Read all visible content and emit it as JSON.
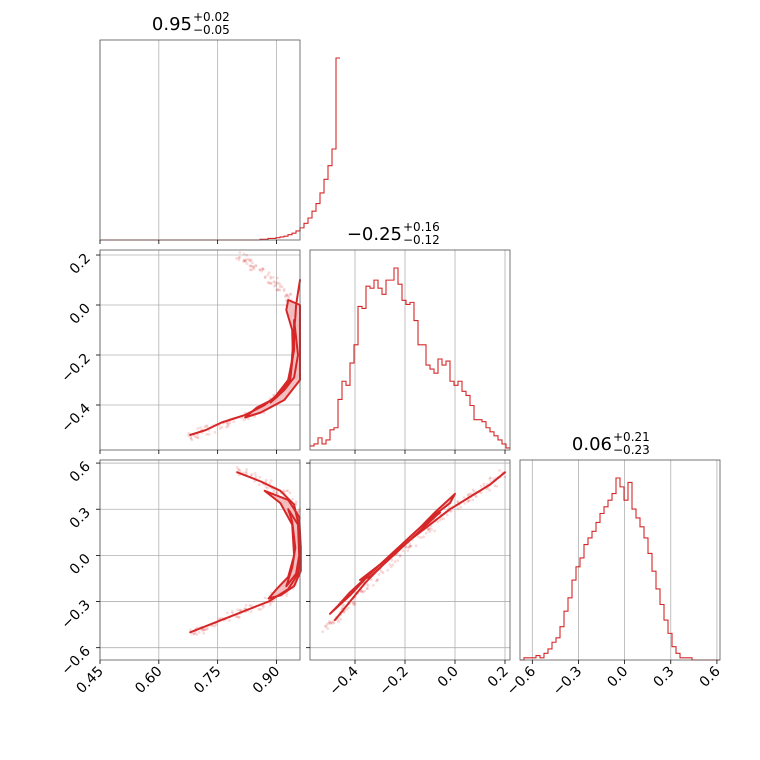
{
  "chart_data": {
    "type": "corner",
    "color": "#d62728",
    "parameters": [
      {
        "median": "0.95",
        "plus": "+0.02",
        "minus": "−0.05",
        "range": [
          0.45,
          0.96
        ],
        "ticks": [
          0.45,
          0.6,
          0.75,
          0.9
        ],
        "tick_labels": [
          "0.45",
          "0.60",
          "0.75",
          "0.90"
        ]
      },
      {
        "median": "−0.25",
        "plus": "+0.16",
        "minus": "−0.12",
        "range": [
          -0.58,
          0.22
        ],
        "ticks": [
          -0.4,
          -0.2,
          0.0,
          0.2
        ],
        "tick_labels": [
          "−0.4",
          "−0.2",
          "0.0",
          "0.2"
        ]
      },
      {
        "median": "0.06",
        "plus": "+0.21",
        "minus": "−0.23",
        "range": [
          -0.68,
          0.62
        ],
        "ticks": [
          -0.6,
          -0.3,
          0.0,
          0.3,
          0.6
        ],
        "tick_labels": [
          "−0.6",
          "−0.3",
          "0.0",
          "0.3",
          "0.6"
        ]
      }
    ],
    "histograms": [
      {
        "param": 0,
        "edges_start": 0.45,
        "bin_width": 0.0102,
        "counts": [
          0,
          0,
          0,
          0,
          0,
          0,
          0,
          0,
          0,
          0,
          0,
          0,
          0,
          0,
          0,
          0,
          0,
          0,
          0,
          0,
          0,
          0,
          0,
          0,
          0,
          0,
          0,
          0,
          0,
          0,
          0,
          0,
          0,
          0,
          0,
          0,
          0,
          0,
          0,
          0,
          1,
          1,
          2,
          2,
          3,
          4,
          5,
          7,
          9,
          12,
          16,
          22,
          29,
          38,
          48,
          62,
          80,
          98,
          120,
          240
        ]
      },
      {
        "param": 1,
        "edges_start": -0.58,
        "bin_width": 0.016,
        "counts": [
          2,
          3,
          6,
          3,
          5,
          10,
          11,
          25,
          34,
          32,
          43,
          52,
          71,
          70,
          81,
          80,
          84,
          80,
          77,
          84,
          84,
          90,
          82,
          74,
          72,
          73,
          64,
          52,
          52,
          42,
          40,
          38,
          45,
          42,
          44,
          34,
          32,
          34,
          29,
          27,
          22,
          15,
          15,
          14,
          11,
          9,
          7,
          5,
          3,
          1
        ]
      },
      {
        "param": 2,
        "edges_start": -0.68,
        "bin_width": 0.026,
        "counts": [
          0,
          1,
          1,
          1,
          2,
          1,
          3,
          5,
          8,
          10,
          15,
          22,
          28,
          36,
          42,
          46,
          52,
          55,
          58,
          62,
          66,
          69,
          72,
          75,
          82,
          78,
          72,
          80,
          68,
          64,
          60,
          55,
          48,
          40,
          32,
          25,
          18,
          12,
          6,
          3,
          1,
          1,
          1,
          0,
          0,
          0,
          0,
          0,
          0,
          0
        ]
      }
    ],
    "pairs": [
      {
        "x": 0,
        "y": 1,
        "ridge": [
          [
            0.96,
            0.1
          ],
          [
            0.955,
            0.05
          ],
          [
            0.95,
            0.0
          ],
          [
            0.948,
            -0.05
          ],
          [
            0.945,
            -0.1
          ],
          [
            0.943,
            -0.15
          ],
          [
            0.94,
            -0.2
          ],
          [
            0.938,
            -0.25
          ],
          [
            0.93,
            -0.3
          ],
          [
            0.91,
            -0.35
          ],
          [
            0.87,
            -0.4
          ],
          [
            0.82,
            -0.44
          ],
          [
            0.76,
            -0.47
          ],
          [
            0.72,
            -0.5
          ],
          [
            0.68,
            -0.52
          ]
        ],
        "scatter_band": [
          [
            0.8,
            0.2
          ],
          [
            0.84,
            0.16
          ],
          [
            0.89,
            0.1
          ],
          [
            0.93,
            0.04
          ],
          [
            0.95,
            -0.05
          ],
          [
            0.955,
            -0.15
          ],
          [
            0.955,
            -0.25
          ],
          [
            0.93,
            -0.33
          ],
          [
            0.88,
            -0.4
          ],
          [
            0.8,
            -0.46
          ],
          [
            0.72,
            -0.5
          ],
          [
            0.68,
            -0.53
          ]
        ],
        "contour_outer": [
          [
            0.93,
            0.02
          ],
          [
            0.96,
            0.0
          ],
          [
            0.96,
            -0.3
          ],
          [
            0.92,
            -0.38
          ],
          [
            0.86,
            -0.43
          ],
          [
            0.82,
            -0.45
          ],
          [
            0.85,
            -0.41
          ],
          [
            0.9,
            -0.37
          ],
          [
            0.935,
            -0.3
          ],
          [
            0.942,
            -0.2
          ],
          [
            0.94,
            -0.1
          ],
          [
            0.925,
            -0.02
          ]
        ],
        "contour_inner": [
          [
            0.945,
            -0.06
          ],
          [
            0.955,
            -0.2
          ],
          [
            0.945,
            -0.29
          ],
          [
            0.92,
            -0.34
          ],
          [
            0.885,
            -0.39
          ],
          [
            0.9,
            -0.36
          ],
          [
            0.93,
            -0.3
          ],
          [
            0.945,
            -0.18
          ]
        ]
      },
      {
        "x": 0,
        "y": 2,
        "ridge": [
          [
            0.8,
            0.54
          ],
          [
            0.86,
            0.48
          ],
          [
            0.91,
            0.42
          ],
          [
            0.945,
            0.33
          ],
          [
            0.958,
            0.18
          ],
          [
            0.96,
            0.0
          ],
          [
            0.955,
            -0.12
          ],
          [
            0.93,
            -0.22
          ],
          [
            0.88,
            -0.3
          ],
          [
            0.8,
            -0.38
          ],
          [
            0.74,
            -0.44
          ],
          [
            0.68,
            -0.5
          ]
        ],
        "scatter_band": [
          [
            0.8,
            0.55
          ],
          [
            0.87,
            0.48
          ],
          [
            0.92,
            0.4
          ],
          [
            0.95,
            0.3
          ],
          [
            0.96,
            0.1
          ],
          [
            0.955,
            -0.1
          ],
          [
            0.93,
            -0.22
          ],
          [
            0.88,
            -0.3
          ],
          [
            0.8,
            -0.38
          ],
          [
            0.72,
            -0.46
          ],
          [
            0.68,
            -0.51
          ]
        ],
        "contour_outer": [
          [
            0.87,
            0.42
          ],
          [
            0.93,
            0.36
          ],
          [
            0.958,
            0.25
          ],
          [
            0.962,
            0.05
          ],
          [
            0.962,
            -0.1
          ],
          [
            0.945,
            -0.2
          ],
          [
            0.91,
            -0.26
          ],
          [
            0.88,
            -0.28
          ],
          [
            0.9,
            -0.22
          ],
          [
            0.93,
            -0.14
          ],
          [
            0.945,
            0.0
          ],
          [
            0.94,
            0.2
          ],
          [
            0.91,
            0.34
          ]
        ],
        "contour_inner": [
          [
            0.93,
            0.3
          ],
          [
            0.955,
            0.2
          ],
          [
            0.958,
            0.0
          ],
          [
            0.95,
            -0.12
          ],
          [
            0.925,
            -0.2
          ],
          [
            0.94,
            -0.08
          ],
          [
            0.948,
            0.05
          ],
          [
            0.94,
            0.22
          ]
        ]
      },
      {
        "x": 1,
        "y": 2,
        "ridge": [
          [
            -0.48,
            -0.42
          ],
          [
            -0.44,
            -0.34
          ],
          [
            -0.4,
            -0.26
          ],
          [
            -0.36,
            -0.18
          ],
          [
            -0.3,
            -0.08
          ],
          [
            -0.24,
            0.02
          ],
          [
            -0.18,
            0.1
          ],
          [
            -0.1,
            0.2
          ],
          [
            -0.02,
            0.3
          ],
          [
            0.06,
            0.38
          ],
          [
            0.14,
            0.46
          ],
          [
            0.2,
            0.54
          ]
        ],
        "scatter_band": [
          [
            -0.52,
            -0.48
          ],
          [
            -0.46,
            -0.38
          ],
          [
            -0.4,
            -0.28
          ],
          [
            -0.32,
            -0.14
          ],
          [
            -0.24,
            -0.02
          ],
          [
            -0.16,
            0.1
          ],
          [
            -0.06,
            0.24
          ],
          [
            0.04,
            0.36
          ],
          [
            0.12,
            0.44
          ],
          [
            0.2,
            0.54
          ]
        ],
        "contour_outer": [
          [
            -0.47,
            -0.33
          ],
          [
            -0.42,
            -0.24
          ],
          [
            -0.36,
            -0.15
          ],
          [
            -0.3,
            -0.06
          ],
          [
            -0.22,
            0.06
          ],
          [
            -0.14,
            0.18
          ],
          [
            -0.08,
            0.28
          ],
          [
            0.0,
            0.4
          ],
          [
            -0.02,
            0.34
          ],
          [
            -0.1,
            0.24
          ],
          [
            -0.18,
            0.12
          ],
          [
            -0.26,
            0.0
          ],
          [
            -0.34,
            -0.12
          ],
          [
            -0.42,
            -0.26
          ],
          [
            -0.5,
            -0.38
          ]
        ],
        "contour_inner": [
          [
            -0.38,
            -0.16
          ],
          [
            -0.3,
            -0.06
          ],
          [
            -0.22,
            0.06
          ],
          [
            -0.14,
            0.18
          ],
          [
            -0.06,
            0.28
          ],
          [
            -0.1,
            0.22
          ],
          [
            -0.18,
            0.1
          ],
          [
            -0.26,
            -0.02
          ],
          [
            -0.34,
            -0.14
          ]
        ]
      }
    ]
  }
}
